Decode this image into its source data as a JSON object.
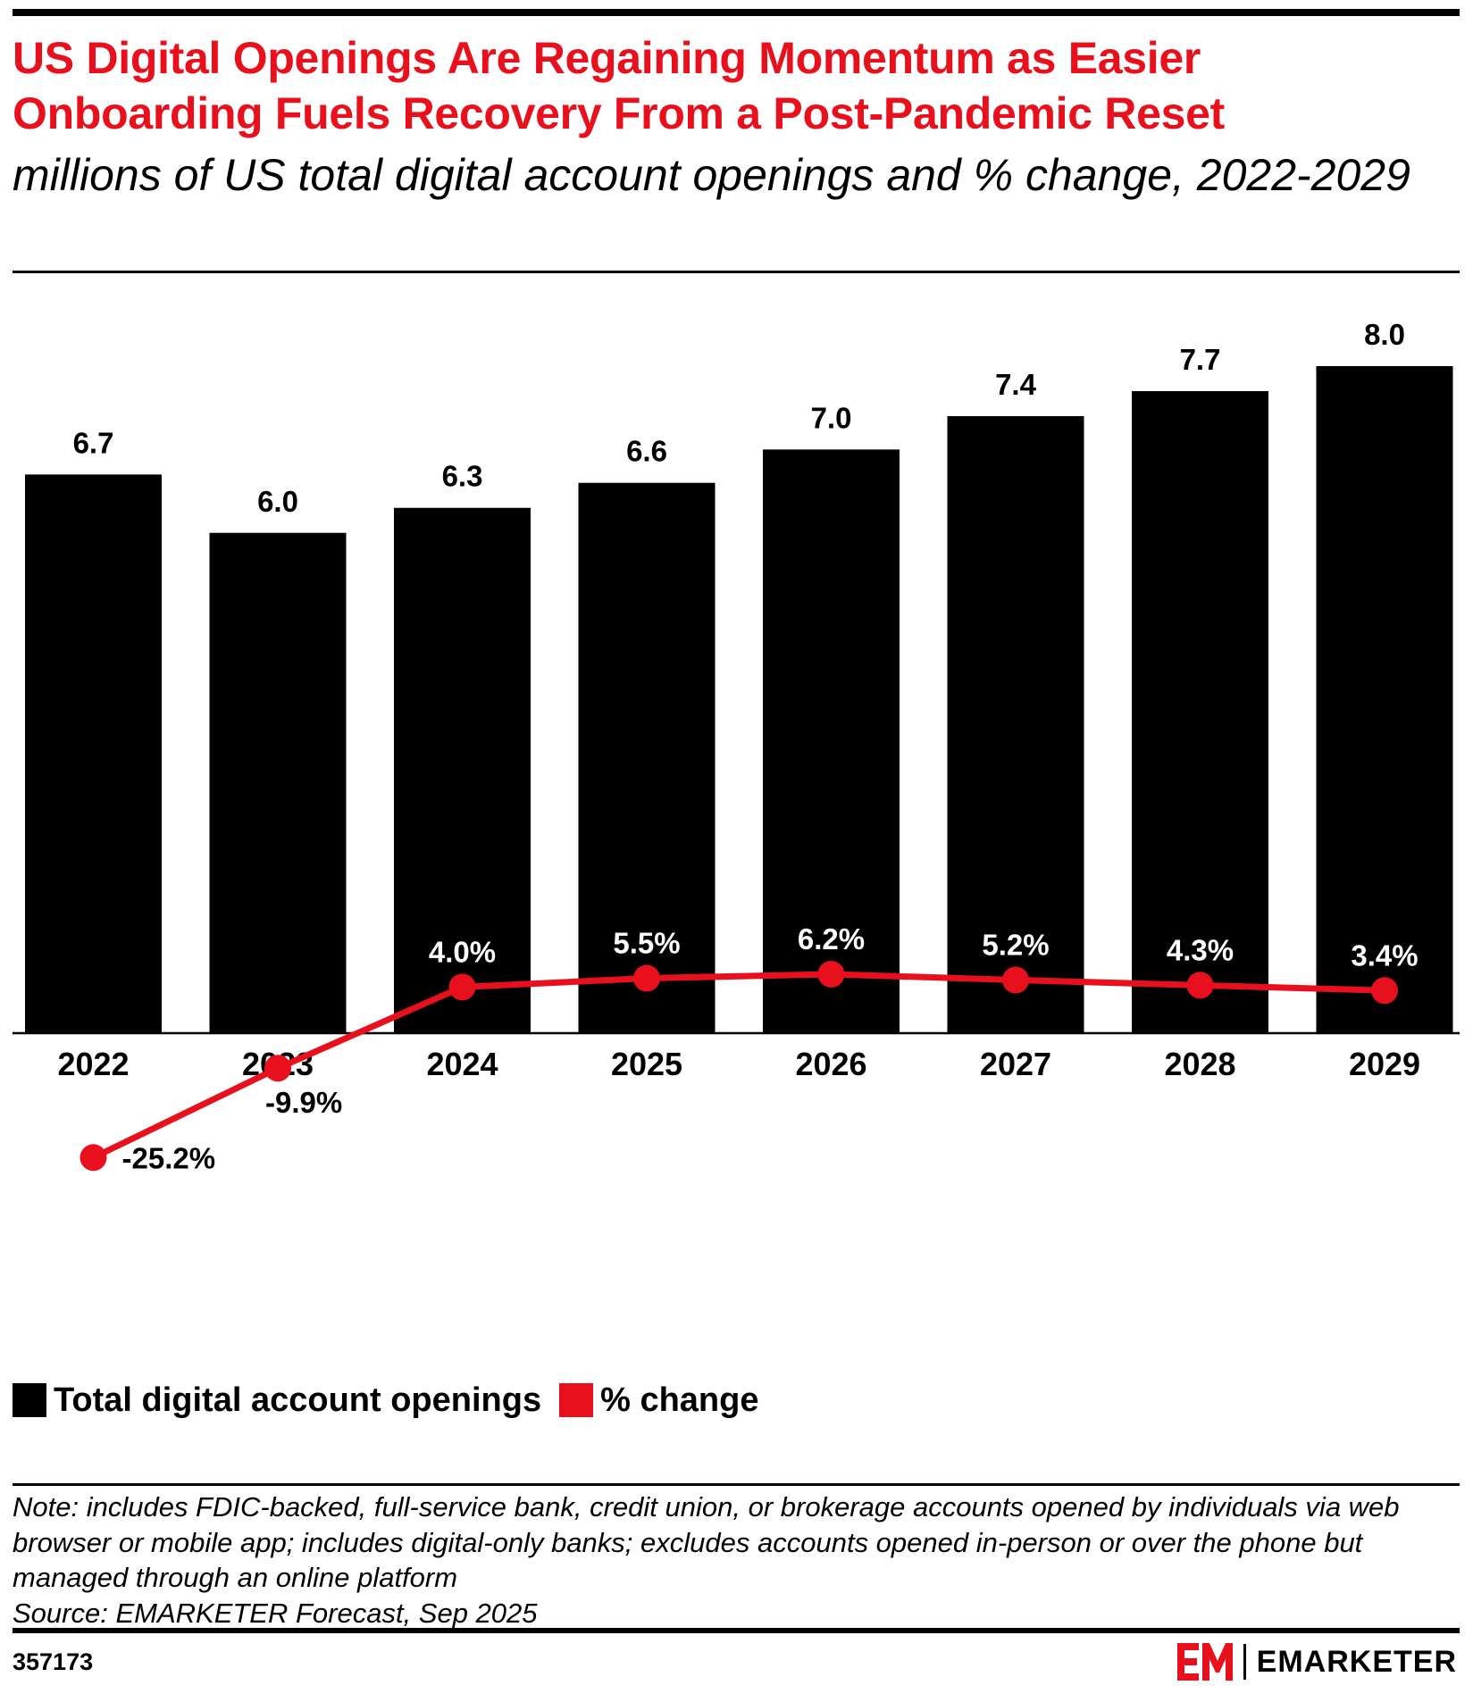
{
  "title": "US Digital Openings Are Regaining Momentum as Easier Onboarding Fuels Recovery From a Post-Pandemic Reset",
  "subtitle": "millions of US total digital account openings and % change, 2022-2029",
  "colors": {
    "accent": "#e8101c",
    "bar": "#000000",
    "line": "#e8101c"
  },
  "chart_data": {
    "type": "bar",
    "categories": [
      "2022",
      "2023",
      "2024",
      "2025",
      "2026",
      "2027",
      "2028",
      "2029"
    ],
    "series": [
      {
        "name": "Total digital account openings",
        "type": "bar",
        "values": [
          6.7,
          6.0,
          6.3,
          6.6,
          7.0,
          7.4,
          7.7,
          8.0
        ],
        "labels": [
          "6.7",
          "6.0",
          "6.3",
          "6.6",
          "7.0",
          "7.4",
          "7.7",
          "8.0"
        ]
      },
      {
        "name": "% change",
        "type": "line",
        "values": [
          -25.2,
          -9.9,
          4.0,
          5.5,
          6.2,
          5.2,
          4.3,
          3.4
        ],
        "labels": [
          "-25.2%",
          "-9.9%",
          "4.0%",
          "5.5%",
          "6.2%",
          "5.2%",
          "4.3%",
          "3.4%"
        ]
      }
    ],
    "legend_position": "bottom-left",
    "grid": false
  },
  "legend": {
    "items": [
      {
        "label": "Total digital account openings",
        "color": "#000000"
      },
      {
        "label": "% change",
        "color": "#e8101c"
      }
    ]
  },
  "note": {
    "text": "Note: includes FDIC-backed, full-service bank, credit union, or brokerage accounts opened by individuals via web browser or mobile app; includes digital-only banks; excludes accounts opened in-person or over the phone but managed through an online platform",
    "source": "Source: EMARKETER Forecast, Sep 2025"
  },
  "footer": {
    "chart_id": "357173",
    "brand_name": "EMARKETER",
    "logo_text": "EM"
  }
}
